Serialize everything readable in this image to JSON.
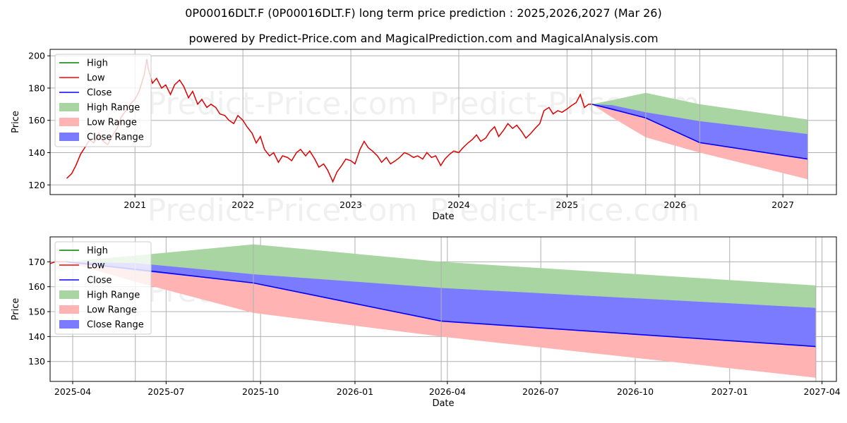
{
  "title": "0P00016DLT.F (0P00016DLT.F) long term price prediction : 2025,2026,2027 (Mar 26)",
  "subtitle": "powered by Predict-Price.com and MagicalPrediction.com and MagicalAnalysis.com",
  "watermark": "Predict-Price.com",
  "colors": {
    "high": "#008000",
    "low": "#ff0000",
    "close": "#0000ff",
    "high_range": "#a8d5a2",
    "low_range": "#ffb3b3",
    "close_range": "#7b7bff",
    "history": "#dd0000"
  },
  "chart_data": [
    {
      "type": "line",
      "xlabel": "Date",
      "ylabel": "Price",
      "xlim": [
        "2020-03-20",
        "2027-07-01"
      ],
      "ylim": [
        114,
        204
      ],
      "x_ticks": [
        "2021",
        "2022",
        "2023",
        "2024",
        "2025",
        "2026",
        "2027"
      ],
      "y_ticks": [
        120,
        140,
        160,
        180,
        200
      ],
      "grid": true,
      "legend_position": "top-left",
      "legend": [
        "High",
        "Low",
        "Close",
        "High Range",
        "Low Range",
        "Close Range"
      ],
      "history": {
        "dates": [
          "2020-05-15",
          "2020-06-01",
          "2020-06-15",
          "2020-07-01",
          "2020-07-15",
          "2020-08-01",
          "2020-08-15",
          "2020-09-01",
          "2020-09-15",
          "2020-10-01",
          "2020-10-15",
          "2020-11-01",
          "2020-11-15",
          "2020-12-01",
          "2020-12-15",
          "2021-01-01",
          "2021-01-15",
          "2021-02-01",
          "2021-02-10",
          "2021-02-15",
          "2021-03-01",
          "2021-03-15",
          "2021-04-01",
          "2021-04-15",
          "2021-05-01",
          "2021-05-15",
          "2021-06-01",
          "2021-06-15",
          "2021-07-01",
          "2021-07-15",
          "2021-08-01",
          "2021-08-15",
          "2021-09-01",
          "2021-09-15",
          "2021-10-01",
          "2021-10-15",
          "2021-11-01",
          "2021-11-15",
          "2021-12-01",
          "2021-12-15",
          "2022-01-01",
          "2022-01-15",
          "2022-02-01",
          "2022-02-15",
          "2022-03-01",
          "2022-03-15",
          "2022-04-01",
          "2022-04-15",
          "2022-05-01",
          "2022-05-15",
          "2022-06-01",
          "2022-06-15",
          "2022-07-01",
          "2022-07-15",
          "2022-08-01",
          "2022-08-15",
          "2022-09-01",
          "2022-09-15",
          "2022-10-01",
          "2022-10-15",
          "2022-11-01",
          "2022-11-15",
          "2022-12-01",
          "2022-12-15",
          "2023-01-01",
          "2023-01-15",
          "2023-02-01",
          "2023-02-15",
          "2023-03-01",
          "2023-03-15",
          "2023-04-01",
          "2023-04-15",
          "2023-05-01",
          "2023-05-15",
          "2023-06-01",
          "2023-06-15",
          "2023-07-01",
          "2023-07-15",
          "2023-08-01",
          "2023-08-15",
          "2023-09-01",
          "2023-09-15",
          "2023-10-01",
          "2023-10-15",
          "2023-11-01",
          "2023-11-15",
          "2023-12-01",
          "2023-12-15",
          "2024-01-01",
          "2024-01-15",
          "2024-02-01",
          "2024-02-15",
          "2024-03-01",
          "2024-03-15",
          "2024-04-01",
          "2024-04-15",
          "2024-05-01",
          "2024-05-15",
          "2024-06-01",
          "2024-06-15",
          "2024-07-01",
          "2024-07-15",
          "2024-08-01",
          "2024-08-15",
          "2024-09-01",
          "2024-09-15",
          "2024-10-01",
          "2024-10-15",
          "2024-11-01",
          "2024-11-15",
          "2024-12-01",
          "2024-12-15",
          "2025-01-01",
          "2025-01-15",
          "2025-02-01",
          "2025-02-15",
          "2025-03-01",
          "2025-03-15",
          "2025-03-26"
        ],
        "low": [
          124,
          127,
          132,
          139,
          143,
          148,
          146,
          152,
          147,
          145,
          150,
          155,
          162,
          166,
          170,
          173,
          178,
          188,
          198,
          192,
          183,
          186,
          180,
          182,
          176,
          182,
          185,
          181,
          174,
          178,
          170,
          173,
          168,
          170,
          168,
          164,
          163,
          160,
          158,
          163,
          160,
          156,
          152,
          146,
          150,
          142,
          138,
          140,
          134,
          138,
          137,
          135,
          140,
          142,
          138,
          141,
          136,
          131,
          133,
          129,
          122,
          128,
          132,
          136,
          135,
          133,
          142,
          147,
          143,
          141,
          138,
          134,
          137,
          133,
          135,
          137,
          140,
          139,
          137,
          138,
          136,
          140,
          137,
          138,
          132,
          136,
          139,
          141,
          140,
          143,
          146,
          148,
          151,
          147,
          149,
          153,
          156,
          150,
          154,
          158,
          155,
          157,
          153,
          149,
          152,
          155,
          158,
          166,
          168,
          164,
          166,
          165,
          167,
          169,
          171,
          176,
          168,
          170,
          170
        ]
      },
      "forecast": {
        "dates": [
          "2025-03-26",
          "2025-06-01",
          "2025-09-24",
          "2026-03-26",
          "2027-03-26"
        ],
        "close": [
          170.0,
          167.0,
          161.5,
          146.2,
          136.0
        ],
        "high_range": [
          [
            170.0,
            170.0
          ],
          [
            162.0,
            172.5
          ],
          [
            150.0,
            177.0
          ],
          [
            140.5,
            170.0
          ],
          [
            123.5,
            160.5
          ]
        ],
        "low_range": [
          [
            170.0,
            170.0
          ],
          [
            162.0,
            167.0
          ],
          [
            149.5,
            161.5
          ],
          [
            140.0,
            146.2
          ],
          [
            123.5,
            136.0
          ]
        ],
        "close_range": [
          [
            170.0,
            170.0
          ],
          [
            166.5,
            169.5
          ],
          [
            161.5,
            165.0
          ],
          [
            146.2,
            159.5
          ],
          [
            136.0,
            151.5
          ]
        ]
      }
    },
    {
      "type": "line",
      "xlabel": "Date",
      "ylabel": "Price",
      "xlim": [
        "2025-03-10",
        "2027-04-15"
      ],
      "ylim": [
        122,
        180
      ],
      "x_ticks": [
        "2025-04",
        "2025-07",
        "2025-10",
        "2026-01",
        "2026-04",
        "2026-07",
        "2026-10",
        "2027-01",
        "2027-04"
      ],
      "y_ticks": [
        130,
        140,
        150,
        160,
        170
      ],
      "grid": true,
      "legend_position": "top-left",
      "legend": [
        "High",
        "Low",
        "Close",
        "High Range",
        "Low Range",
        "Close Range"
      ]
    }
  ]
}
